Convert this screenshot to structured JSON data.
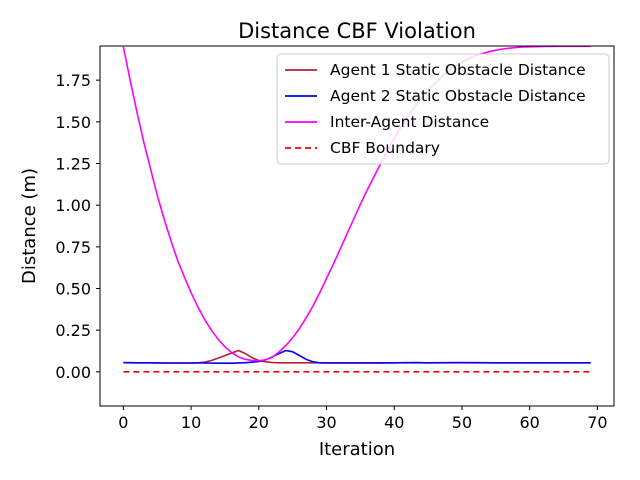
{
  "chart_data": {
    "type": "line",
    "title": "Distance CBF Violation",
    "xlabel": "Iteration",
    "ylabel": "Distance (m)",
    "xlim": [
      -3.45,
      72.45
    ],
    "ylim": [
      -0.205,
      1.955
    ],
    "xticks": [
      0,
      10,
      20,
      30,
      40,
      50,
      60,
      70
    ],
    "yticks": [
      0.0,
      0.25,
      0.5,
      0.75,
      1.0,
      1.25,
      1.5,
      1.75
    ],
    "xtick_labels": [
      "0",
      "10",
      "20",
      "30",
      "40",
      "50",
      "60",
      "70"
    ],
    "ytick_labels": [
      "0.00",
      "0.25",
      "0.50",
      "0.75",
      "1.00",
      "1.25",
      "1.50",
      "1.75"
    ],
    "grid": false,
    "legend_position": "top-right",
    "series": [
      {
        "name": "Agent 1 Static Obstacle Distance",
        "color": "#b22234",
        "dash": "solid",
        "x": [
          0,
          2,
          4,
          6,
          8,
          10,
          11,
          12,
          13,
          14,
          15,
          16,
          17,
          18,
          19,
          20,
          21,
          22,
          23,
          24,
          25,
          26,
          27,
          28,
          30,
          35,
          40,
          45,
          50,
          55,
          60,
          65,
          69
        ],
        "y": [
          0.055,
          0.054,
          0.054,
          0.053,
          0.053,
          0.053,
          0.054,
          0.058,
          0.068,
          0.082,
          0.097,
          0.113,
          0.128,
          0.11,
          0.085,
          0.068,
          0.06,
          0.056,
          0.054,
          0.054,
          0.054,
          0.054,
          0.054,
          0.054,
          0.054,
          0.054,
          0.054,
          0.054,
          0.054,
          0.054,
          0.054,
          0.054,
          0.054
        ]
      },
      {
        "name": "Agent 2 Static Obstacle Distance",
        "color": "#0000ff",
        "dash": "solid",
        "x": [
          0,
          2,
          4,
          6,
          8,
          10,
          12,
          14,
          16,
          18,
          19,
          20,
          21,
          22,
          23,
          24,
          25,
          26,
          27,
          28,
          29,
          30,
          32,
          35,
          40,
          43,
          45,
          50,
          55,
          60,
          65,
          69
        ],
        "y": [
          0.055,
          0.054,
          0.054,
          0.053,
          0.053,
          0.053,
          0.053,
          0.052,
          0.052,
          0.055,
          0.058,
          0.062,
          0.072,
          0.09,
          0.11,
          0.128,
          0.12,
          0.098,
          0.075,
          0.06,
          0.054,
          0.053,
          0.053,
          0.053,
          0.054,
          0.056,
          0.054,
          0.056,
          0.054,
          0.054,
          0.054,
          0.054
        ]
      },
      {
        "name": "Inter-Agent Distance",
        "color": "#ff00ff",
        "dash": "solid",
        "x": [
          0,
          1,
          2,
          3,
          4,
          5,
          6,
          7,
          8,
          9,
          10,
          11,
          12,
          13,
          14,
          15,
          16,
          17,
          18,
          19,
          20,
          21,
          22,
          23,
          24,
          25,
          26,
          27,
          28,
          29,
          30,
          31,
          32,
          33,
          34,
          35,
          36,
          37,
          38,
          39,
          40,
          41,
          42,
          43,
          44,
          45,
          46,
          47,
          48,
          49,
          50,
          51,
          52,
          53,
          54,
          55,
          56,
          57,
          58,
          59,
          60,
          61,
          62,
          63,
          64,
          65,
          66,
          67,
          68,
          69
        ],
        "y": [
          1.95,
          1.75,
          1.56,
          1.38,
          1.22,
          1.06,
          0.92,
          0.79,
          0.67,
          0.57,
          0.475,
          0.39,
          0.315,
          0.25,
          0.195,
          0.15,
          0.115,
          0.09,
          0.075,
          0.068,
          0.067,
          0.072,
          0.088,
          0.12,
          0.158,
          0.205,
          0.26,
          0.325,
          0.395,
          0.475,
          0.56,
          0.645,
          0.735,
          0.825,
          0.915,
          1.005,
          1.09,
          1.17,
          1.25,
          1.33,
          1.4,
          1.47,
          1.53,
          1.59,
          1.64,
          1.69,
          1.73,
          1.77,
          1.805,
          1.835,
          1.86,
          1.88,
          1.897,
          1.91,
          1.92,
          1.93,
          1.937,
          1.942,
          1.946,
          1.949,
          1.95,
          1.951,
          1.952,
          1.952,
          1.953,
          1.953,
          1.953,
          1.953,
          1.953,
          1.953
        ]
      },
      {
        "name": "CBF Boundary",
        "color": "#ff0000",
        "dash": "dashed",
        "x": [
          0,
          69
        ],
        "y": [
          0.0,
          0.0
        ]
      }
    ]
  }
}
